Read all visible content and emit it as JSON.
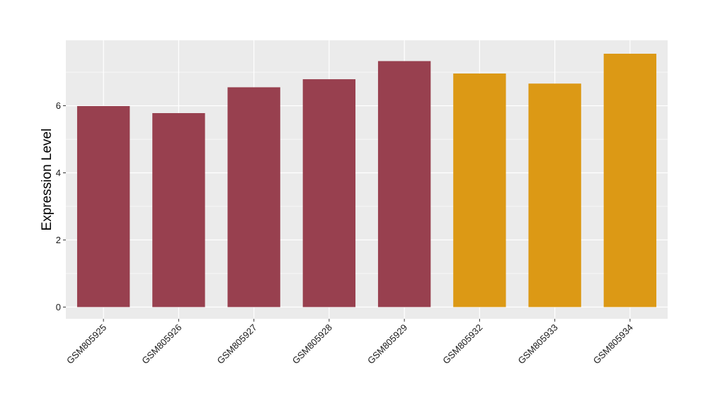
{
  "chart_data": {
    "type": "bar",
    "title": "",
    "xlabel": "",
    "ylabel": "Expression Level",
    "categories": [
      "GSM805925",
      "GSM805926",
      "GSM805927",
      "GSM805928",
      "GSM805929",
      "GSM805932",
      "GSM805933",
      "GSM805934"
    ],
    "values": [
      5.99,
      5.78,
      6.55,
      6.79,
      7.33,
      6.96,
      6.66,
      7.55
    ],
    "bar_colors": [
      "#98404f",
      "#98404f",
      "#98404f",
      "#98404f",
      "#98404f",
      "#dc9915",
      "#dc9915",
      "#dc9915"
    ],
    "ylim": [
      -0.35,
      7.95
    ],
    "yticks": [
      0,
      2,
      4,
      6
    ],
    "ytick_labels": [
      "0",
      "2",
      "4",
      "6"
    ],
    "grid": true,
    "panel_background": "#ebebeb",
    "grid_color": "#ffffff"
  }
}
